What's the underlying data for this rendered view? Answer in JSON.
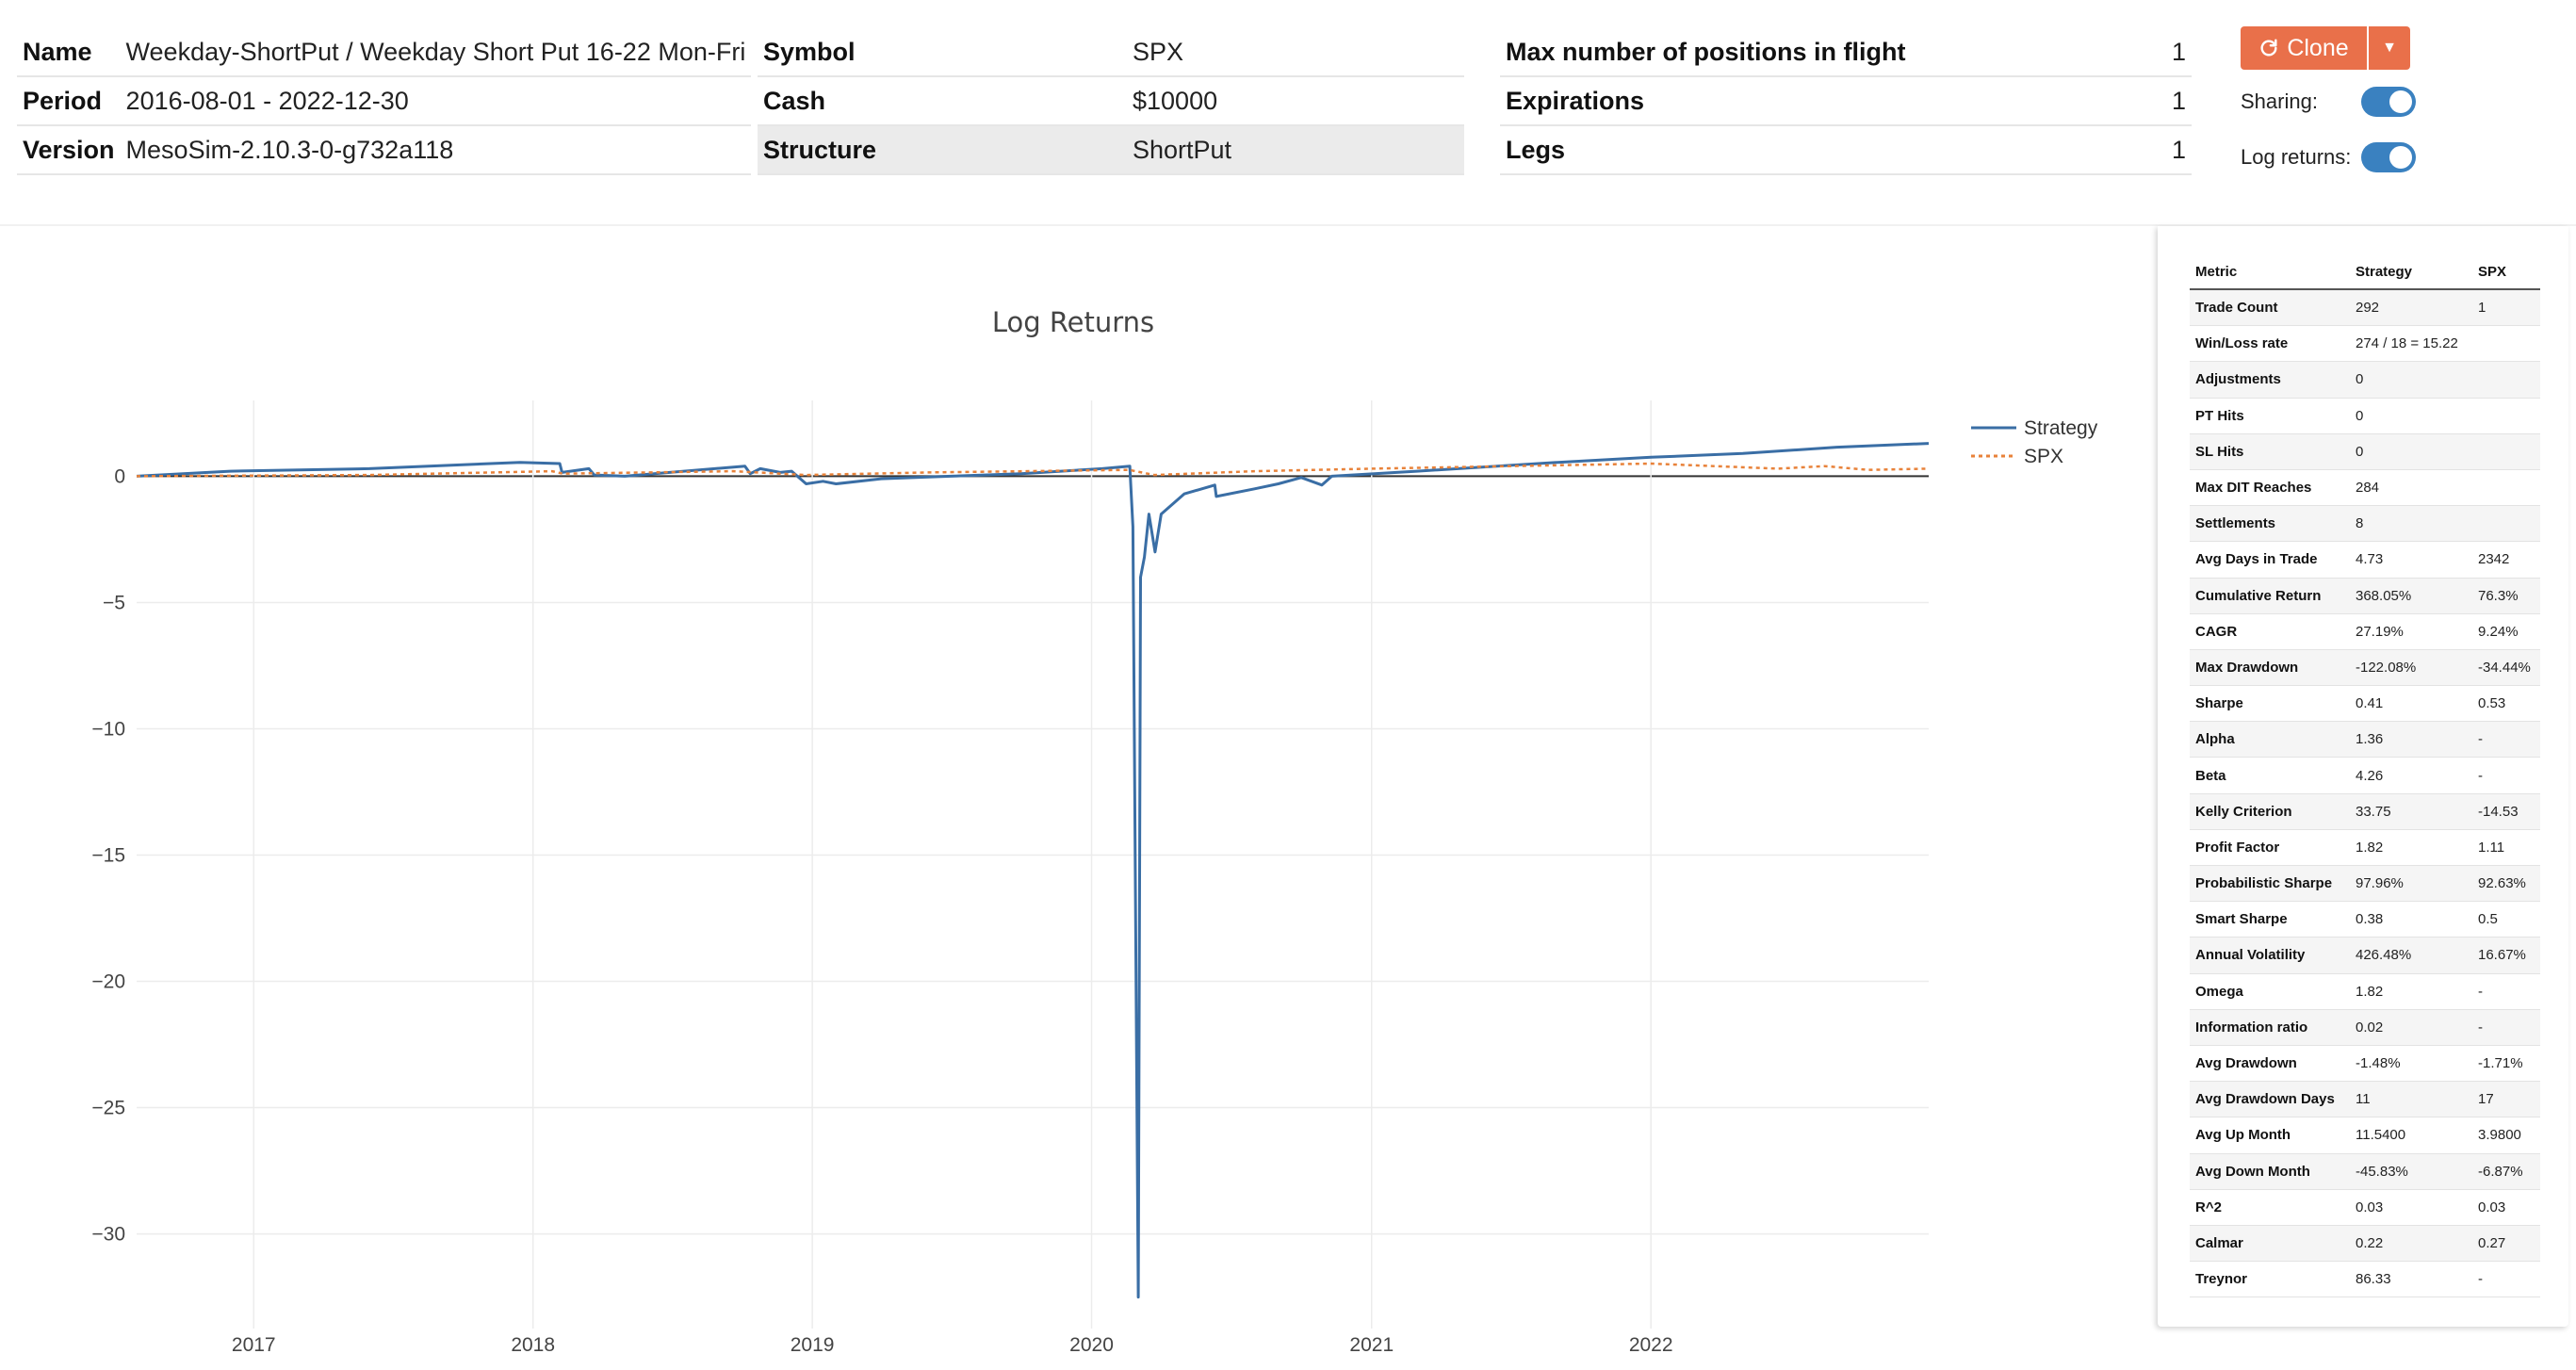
{
  "info_left": [
    {
      "label": "Name",
      "value": "Weekday-ShortPut / Weekday Short Put 16-22 Mon-Fri"
    },
    {
      "label": "Period",
      "value": "2016-08-01 - 2022-12-30"
    },
    {
      "label": "Version",
      "value": "MesoSim-2.10.3-0-g732a118"
    }
  ],
  "info_mid": [
    {
      "label": "Symbol",
      "value": "SPX"
    },
    {
      "label": "Cash",
      "value": "$10000"
    },
    {
      "label": "Structure",
      "value": "ShortPut"
    }
  ],
  "info_right": [
    {
      "label": "Max number of positions in flight",
      "value": "1"
    },
    {
      "label": "Expirations",
      "value": "1"
    },
    {
      "label": "Legs",
      "value": "1"
    }
  ],
  "controls": {
    "clone_label": "Clone",
    "sharing_label": "Sharing:",
    "sharing_on": true,
    "log_returns_label": "Log returns:",
    "log_returns_on": true,
    "accent": "#e9704a",
    "toggle_color": "#3a81c0"
  },
  "chart_data": {
    "type": "line",
    "title": "Log Returns",
    "x_ticks": [
      "2017",
      "2018",
      "2019",
      "2020",
      "2021",
      "2022"
    ],
    "y_ticks": [
      "0",
      "−5",
      "−10",
      "−15",
      "−20",
      "−25",
      "−30"
    ],
    "ylim": [
      -33,
      3
    ],
    "xlim": [
      "2016-08-01",
      "2022-12-30"
    ],
    "legend_position": "top-right",
    "grid": true,
    "series": [
      {
        "name": "Strategy",
        "color": "#3a6ea5",
        "style": "solid",
        "points": [
          [
            "2016-08-01",
            0.0
          ],
          [
            "2016-12-01",
            0.2
          ],
          [
            "2017-06-01",
            0.3
          ],
          [
            "2017-12-15",
            0.55
          ],
          [
            "2018-02-05",
            0.5
          ],
          [
            "2018-02-08",
            0.15
          ],
          [
            "2018-03-15",
            0.3
          ],
          [
            "2018-03-22",
            0.05
          ],
          [
            "2018-05-01",
            0.0
          ],
          [
            "2018-10-05",
            0.4
          ],
          [
            "2018-10-12",
            0.1
          ],
          [
            "2018-10-25",
            0.3
          ],
          [
            "2018-11-20",
            0.15
          ],
          [
            "2018-12-05",
            0.2
          ],
          [
            "2018-12-24",
            -0.3
          ],
          [
            "2019-01-15",
            -0.2
          ],
          [
            "2019-02-01",
            -0.3
          ],
          [
            "2019-04-01",
            -0.1
          ],
          [
            "2019-07-01",
            0.0
          ],
          [
            "2019-10-01",
            0.1
          ],
          [
            "2020-01-15",
            0.3
          ],
          [
            "2020-02-20",
            0.4
          ],
          [
            "2020-02-24",
            -2.0
          ],
          [
            "2020-02-27",
            -15.0
          ],
          [
            "2020-03-02",
            -32.5
          ],
          [
            "2020-03-05",
            -4.0
          ],
          [
            "2020-03-10",
            -3.2
          ],
          [
            "2020-03-16",
            -1.5
          ],
          [
            "2020-03-24",
            -3.0
          ],
          [
            "2020-04-01",
            -1.5
          ],
          [
            "2020-05-01",
            -0.7
          ],
          [
            "2020-06-10",
            -0.35
          ],
          [
            "2020-06-12",
            -0.8
          ],
          [
            "2020-08-01",
            -0.5
          ],
          [
            "2020-09-01",
            -0.3
          ],
          [
            "2020-10-01",
            -0.05
          ],
          [
            "2020-10-28",
            -0.35
          ],
          [
            "2020-11-10",
            0.0
          ],
          [
            "2021-03-01",
            0.2
          ],
          [
            "2021-09-01",
            0.55
          ],
          [
            "2022-01-01",
            0.75
          ],
          [
            "2022-05-01",
            0.9
          ],
          [
            "2022-09-01",
            1.15
          ],
          [
            "2022-12-30",
            1.3
          ]
        ]
      },
      {
        "name": "SPX",
        "color": "#e8823a",
        "style": "dotted",
        "points": [
          [
            "2016-08-01",
            0.0
          ],
          [
            "2017-06-01",
            0.05
          ],
          [
            "2018-01-26",
            0.2
          ],
          [
            "2018-02-09",
            0.1
          ],
          [
            "2018-09-20",
            0.2
          ],
          [
            "2018-12-24",
            0.05
          ],
          [
            "2019-06-01",
            0.15
          ],
          [
            "2020-02-19",
            0.25
          ],
          [
            "2020-03-23",
            0.05
          ],
          [
            "2020-08-01",
            0.2
          ],
          [
            "2021-01-01",
            0.3
          ],
          [
            "2021-12-31",
            0.5
          ],
          [
            "2022-06-16",
            0.3
          ],
          [
            "2022-08-16",
            0.4
          ],
          [
            "2022-10-12",
            0.25
          ],
          [
            "2022-12-30",
            0.3
          ]
        ]
      }
    ]
  },
  "metrics": {
    "headers": [
      "Metric",
      "Strategy",
      "SPX"
    ],
    "rows": [
      [
        "Trade Count",
        "292",
        "1"
      ],
      [
        "Win/Loss rate",
        "274 / 18 = 15.22",
        ""
      ],
      [
        "Adjustments",
        "0",
        ""
      ],
      [
        "PT Hits",
        "0",
        ""
      ],
      [
        "SL Hits",
        "0",
        ""
      ],
      [
        "Max DIT Reaches",
        "284",
        ""
      ],
      [
        "Settlements",
        "8",
        ""
      ],
      [
        "Avg Days in Trade",
        "4.73",
        "2342"
      ],
      [
        "Cumulative Return",
        "368.05%",
        "76.3%"
      ],
      [
        "CAGR",
        "27.19%",
        "9.24%"
      ],
      [
        "Max Drawdown",
        "-122.08%",
        "-34.44%"
      ],
      [
        "Sharpe",
        "0.41",
        "0.53"
      ],
      [
        "Alpha",
        "1.36",
        "-"
      ],
      [
        "Beta",
        "4.26",
        "-"
      ],
      [
        "Kelly Criterion",
        "33.75",
        "-14.53"
      ],
      [
        "Profit Factor",
        "1.82",
        "1.11"
      ],
      [
        "Probabilistic Sharpe",
        "97.96%",
        "92.63%"
      ],
      [
        "Smart Sharpe",
        "0.38",
        "0.5"
      ],
      [
        "Annual Volatility",
        "426.48%",
        "16.67%"
      ],
      [
        "Omega",
        "1.82",
        "-"
      ],
      [
        "Information ratio",
        "0.02",
        "-"
      ],
      [
        "Avg Drawdown",
        "-1.48%",
        "-1.71%"
      ],
      [
        "Avg Drawdown Days",
        "11",
        "17"
      ],
      [
        "Avg Up Month",
        "11.5400",
        "3.9800"
      ],
      [
        "Avg Down Month",
        "-45.83%",
        "-6.87%"
      ],
      [
        "R^2",
        "0.03",
        "0.03"
      ],
      [
        "Calmar",
        "0.22",
        "0.27"
      ],
      [
        "Treynor",
        "86.33",
        "-"
      ]
    ]
  }
}
